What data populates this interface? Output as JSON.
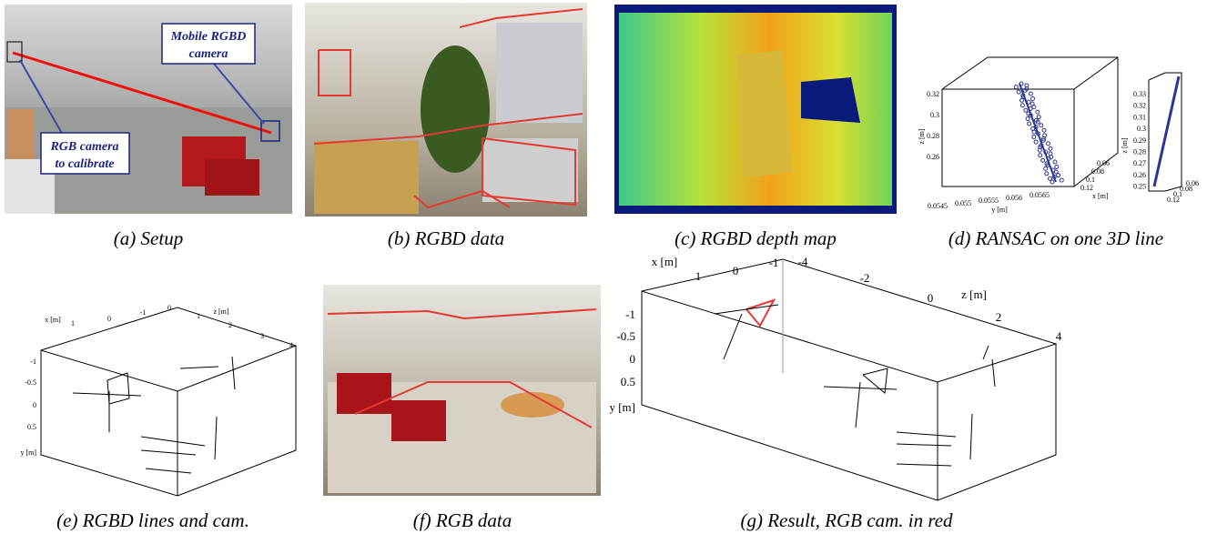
{
  "panel_a": {
    "caption": "(a) Setup",
    "annotation_top": [
      "Mobile RGBD",
      "camera"
    ],
    "annotation_bottom": [
      "RGB camera",
      "to calibrate"
    ]
  },
  "panel_b": {
    "caption": "(b) RGBD data"
  },
  "panel_c": {
    "caption": "(c) RGBD depth map"
  },
  "panel_d": {
    "caption": "(d) RANSAC on one 3D line",
    "main_plot": {
      "z_label": "z [m]",
      "z_ticks": [
        "0.32",
        "0.3",
        "0.28",
        "0.26"
      ],
      "y_label": "y [m]",
      "y_ticks": [
        "0.0545",
        "0.055",
        "0.0555",
        "0.056",
        "0.0565"
      ],
      "x_label": "x [m]",
      "x_ticks": [
        "0.06",
        "0.08",
        "0.1",
        "0.12"
      ]
    },
    "side_plot": {
      "z_label": "z [m]",
      "z_ticks": [
        "0.33",
        "0.32",
        "0.31",
        "0.3",
        "0.29",
        "0.28",
        "0.27",
        "0.26",
        "0.25"
      ],
      "x_ticks": [
        "0.06",
        "0.08",
        "0.1",
        "0.12"
      ]
    }
  },
  "panel_e": {
    "caption": "(e) RGBD lines and cam.",
    "x_label": "x [m]",
    "x_ticks": [
      "1",
      "0",
      "-1"
    ],
    "z_label": "z [m]",
    "z_ticks": [
      "0",
      "1",
      "2",
      "3",
      "4"
    ],
    "y_label": "y [m]",
    "y_ticks": [
      "-1",
      "-0.5",
      "0",
      "0.5"
    ]
  },
  "panel_f": {
    "caption": "(f) RGB data"
  },
  "panel_g": {
    "caption": "(g) Result, RGB cam. in red",
    "x_label": "x [m]",
    "x_ticks": [
      "1",
      "0",
      "-1"
    ],
    "z_label": "z [m]",
    "z_ticks": [
      "-4",
      "-2",
      "0",
      "2",
      "4"
    ],
    "y_label": "y [m]",
    "y_ticks": [
      "-1",
      "-0.5",
      "0",
      "0.5"
    ]
  }
}
